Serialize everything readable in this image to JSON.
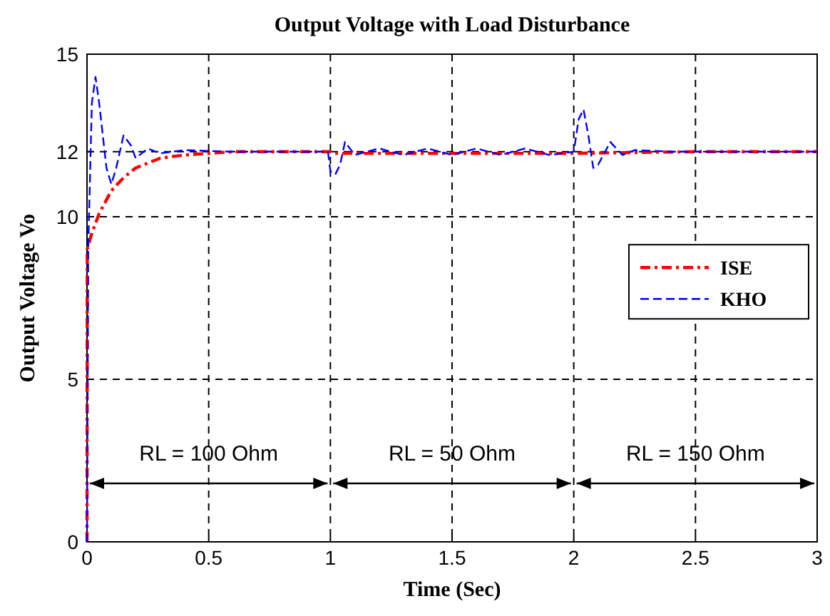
{
  "chart_data": {
    "type": "line",
    "title": "Output Voltage with Load Disturbance",
    "xlabel": "Time (Sec)",
    "ylabel": "Output Voltage Vo",
    "xlim": [
      0,
      3
    ],
    "xticks": [
      0,
      0.5,
      1,
      1.5,
      2,
      2.5,
      3
    ],
    "ylim": [
      0,
      15
    ],
    "yticks": [
      0,
      5,
      10,
      12,
      15
    ],
    "grid": true,
    "legend": "right",
    "line_style": "dashed",
    "series": [
      {
        "name": "ISE",
        "color": "#ff0000",
        "x": [
          0,
          0.001,
          0.02,
          0.05,
          0.1,
          0.15,
          0.2,
          0.3,
          0.4,
          0.5,
          0.6,
          0.8,
          1.0,
          1.01,
          1.5,
          2.0,
          2.5,
          3.0
        ],
        "values": [
          0,
          9,
          9.5,
          10.1,
          10.8,
          11.2,
          11.5,
          11.8,
          11.9,
          11.95,
          12,
          12,
          12,
          11.95,
          11.95,
          11.95,
          12,
          12
        ]
      },
      {
        "name": "KHO",
        "color": "#0000ff",
        "x": [
          0,
          0.005,
          0.02,
          0.035,
          0.05,
          0.08,
          0.1,
          0.12,
          0.15,
          0.18,
          0.2,
          0.25,
          0.3,
          0.4,
          0.6,
          0.8,
          0.99,
          1.0,
          1.02,
          1.04,
          1.06,
          1.1,
          1.2,
          1.3,
          1.4,
          1.5,
          1.6,
          1.7,
          1.8,
          1.9,
          2.0,
          2.02,
          2.04,
          2.06,
          2.08,
          2.1,
          2.15,
          2.2,
          2.25,
          2.4,
          3.0
        ],
        "values": [
          0,
          9,
          13.5,
          14.3,
          13.5,
          11.5,
          11.0,
          11.5,
          12.5,
          12.2,
          11.8,
          12.1,
          11.95,
          12.05,
          12,
          12,
          12,
          11.4,
          11.3,
          11.6,
          12.3,
          11.9,
          12.1,
          11.9,
          12.1,
          11.9,
          12.1,
          11.9,
          12.1,
          11.9,
          12,
          13.0,
          13.3,
          12.5,
          11.5,
          11.6,
          12.3,
          11.9,
          12.05,
          12,
          12
        ]
      }
    ],
    "annotations": [
      "RL = 100 Ohm",
      "RL = 50 Ohm",
      "RL = 150 Ohm"
    ]
  }
}
